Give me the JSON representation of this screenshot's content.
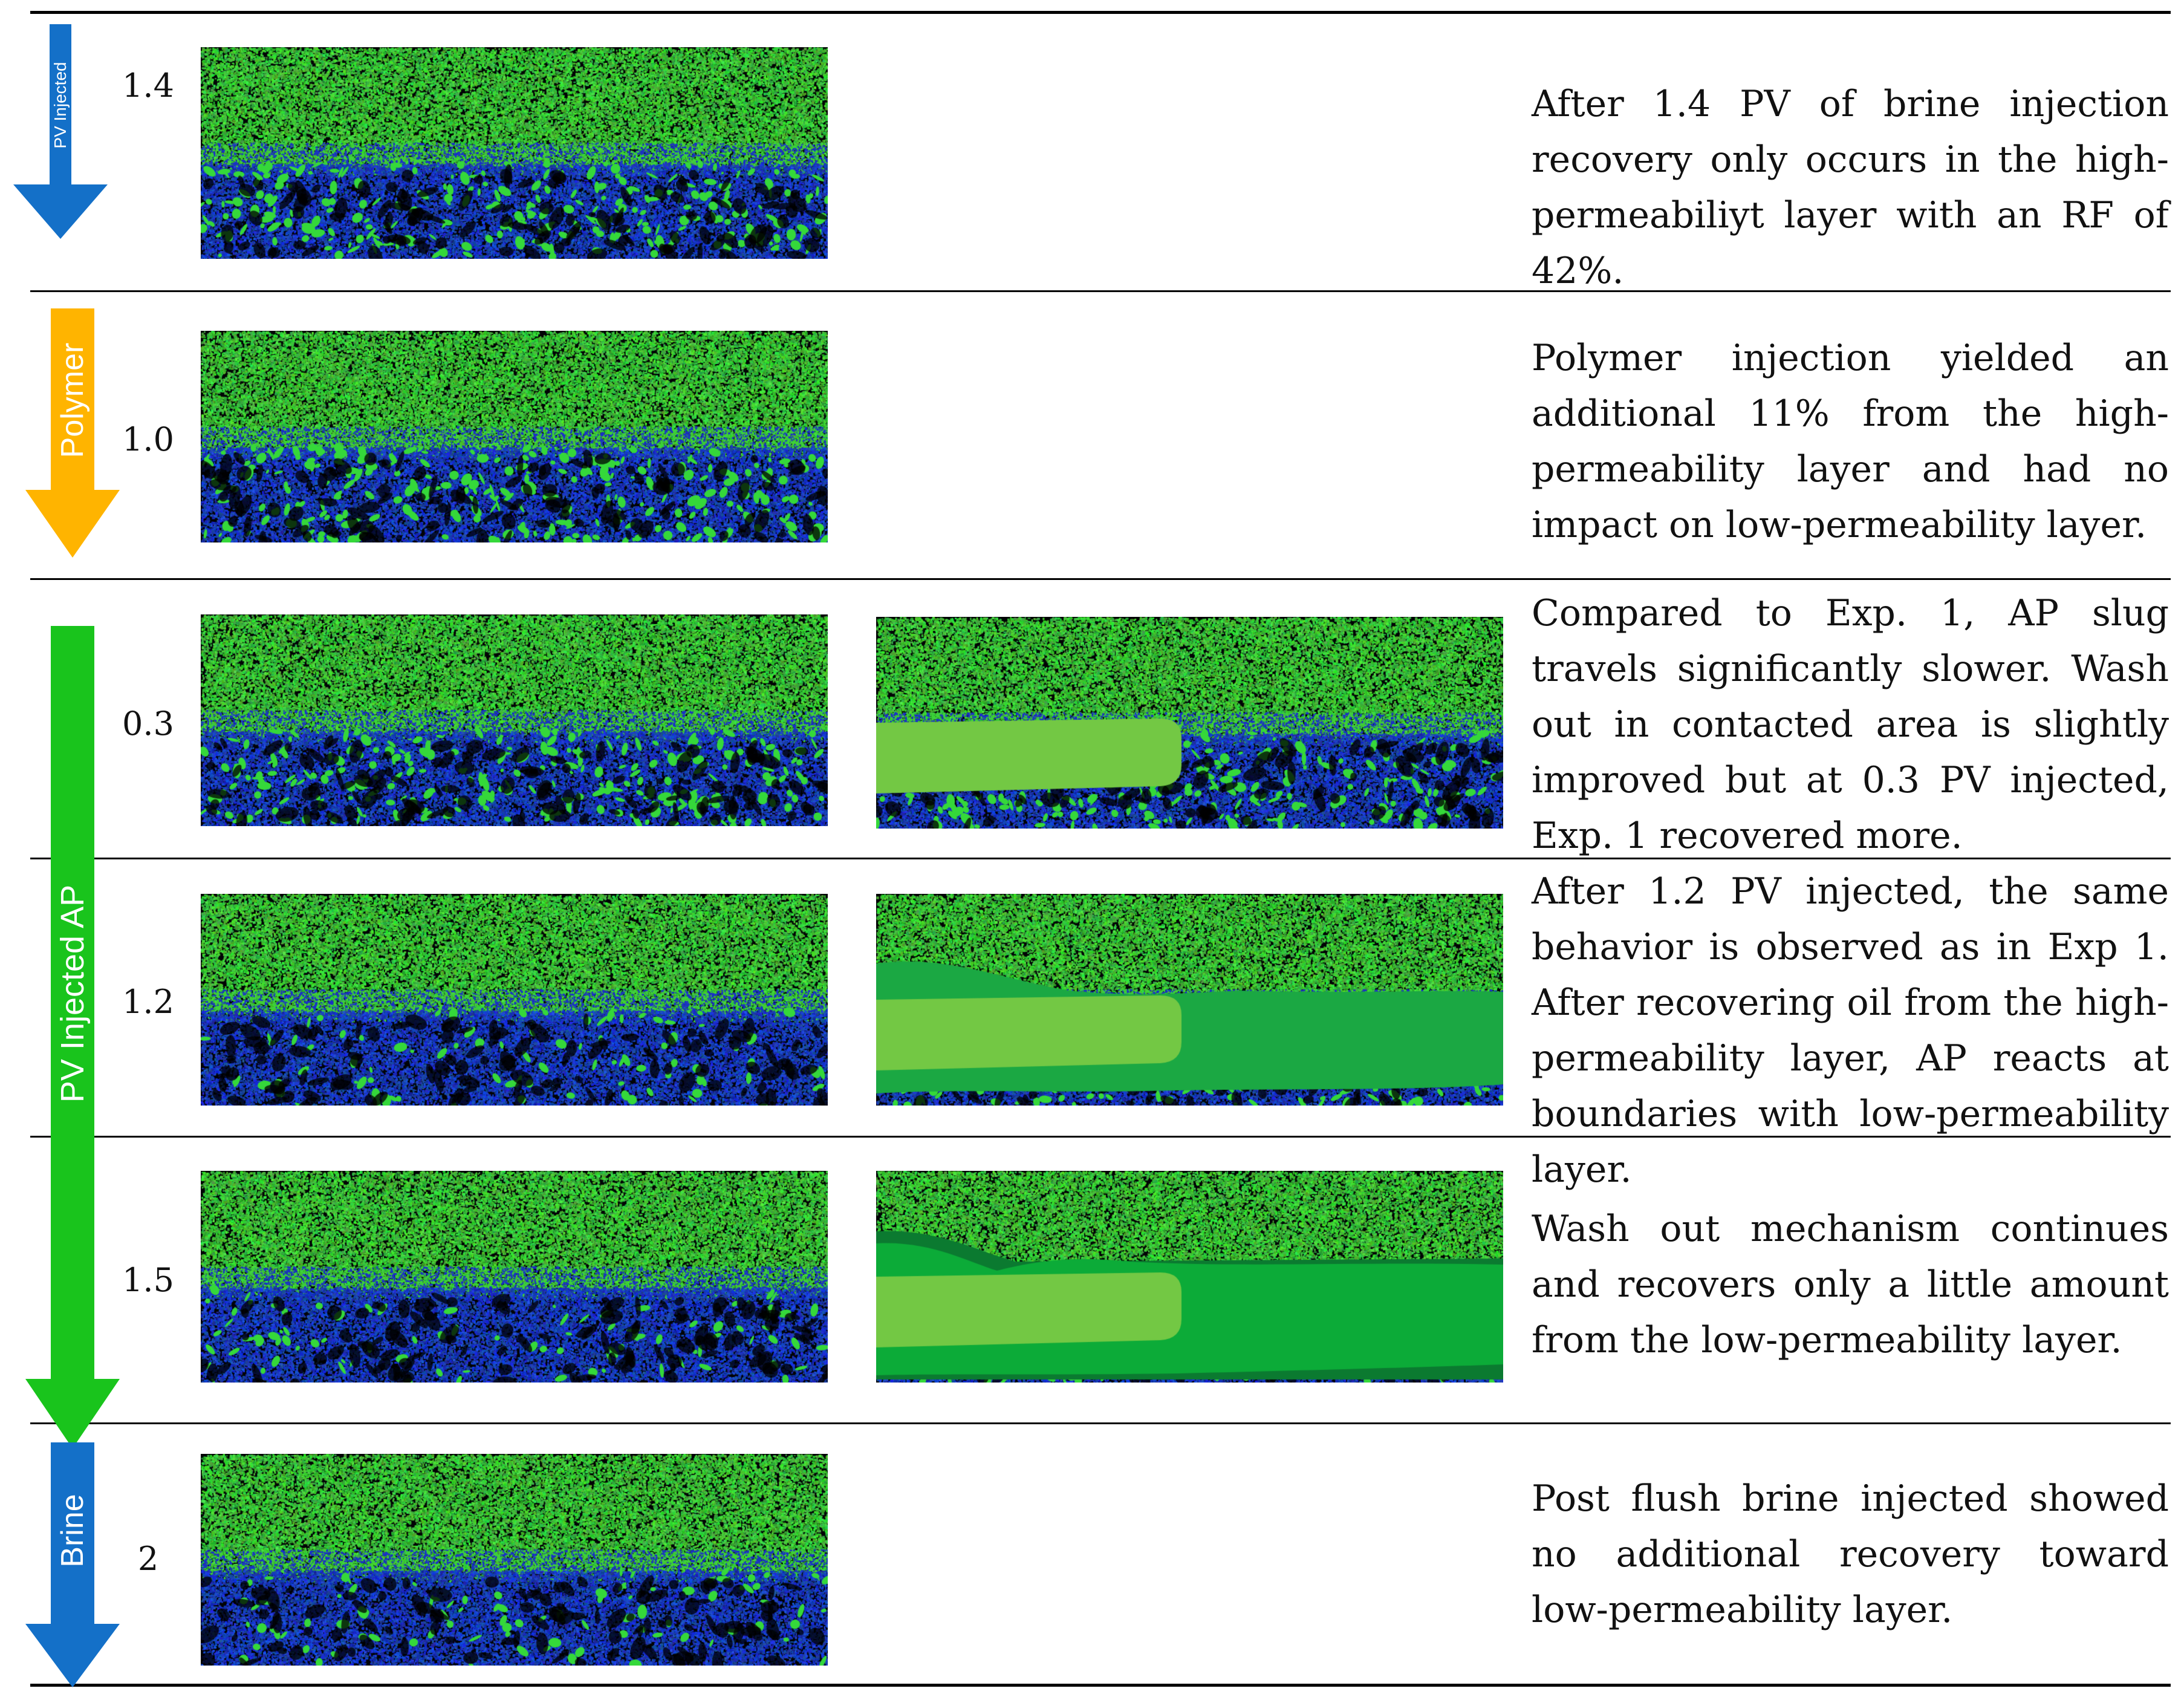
{
  "stages": [
    {
      "stage_label": "PV Injected",
      "arrow_color": "#1470c8",
      "rows": [
        {
          "pv": "1.4",
          "has_overlay": false,
          "overlay": "none",
          "caption": "After 1.4 PV of brine injection recovery only occurs in the high-permeabiliyt layer with an RF of 42%."
        }
      ]
    },
    {
      "stage_label": "Polymer",
      "arrow_color": "#ffb400",
      "rows": [
        {
          "pv": "1.0",
          "has_overlay": false,
          "overlay": "none",
          "caption": "Polymer injection yielded an additional 11% from the high-permeability layer and had no impact on low-permeability layer."
        }
      ]
    },
    {
      "stage_label": "PV Injected AP",
      "arrow_color": "#19c41c",
      "rows": [
        {
          "pv": "0.3",
          "has_overlay": true,
          "overlay": "slug",
          "caption": "Compared to Exp. 1, AP slug travels significantly slower. Wash out in contacted area is slightly improved but at 0.3 PV injected, Exp. 1 recovered more."
        },
        {
          "pv": "1.2",
          "has_overlay": true,
          "overlay": "slug-washout",
          "caption": "After 1.2 PV injected, the same behavior is observed as in Exp 1. After recovering oil from the high-permeability layer, AP reacts at boundaries with low-permeability layer."
        },
        {
          "pv": "1.5",
          "has_overlay": true,
          "overlay": "slug-washout-expanded",
          "caption": "Wash out mechanism continues and recovers only a little amount from the low-permeability layer."
        }
      ]
    },
    {
      "stage_label": "Brine",
      "arrow_color": "#1470c8",
      "rows": [
        {
          "pv": "2",
          "has_overlay": false,
          "overlay": "none",
          "caption": "Post flush brine injected showed no additional recovery toward low-permeability layer."
        }
      ]
    }
  ],
  "micromodel_colors": {
    "pore_background": "#020305",
    "high_perm_grain": "#3fd13a",
    "low_perm_grain": "#1b2fc8",
    "oil_ganglia": "#35d83a",
    "ap_slug": "#73c844",
    "washout_zone": "#1ba843",
    "washout_zone_late": "#0cab38",
    "washout_zone_edge": "#0b7a30"
  }
}
